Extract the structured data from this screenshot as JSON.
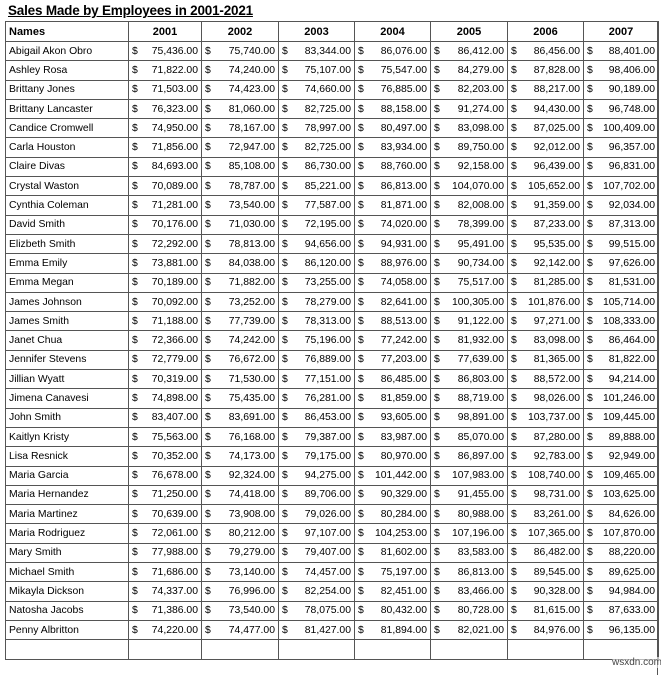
{
  "title": "Sales Made by Employees in 2001-2021",
  "currency_symbol": "$",
  "headers": [
    "Names",
    "2001",
    "2002",
    "2003",
    "2004",
    "2005",
    "2006",
    "2007"
  ],
  "rows": [
    [
      "Abigail Akon Obro",
      "75,436.00",
      "75,740.00",
      "83,344.00",
      "86,076.00",
      "86,412.00",
      "86,456.00",
      "88,401.00"
    ],
    [
      "Ashley Rosa",
      "71,822.00",
      "74,240.00",
      "75,107.00",
      "75,547.00",
      "84,279.00",
      "87,828.00",
      "98,406.00"
    ],
    [
      "Brittany Jones",
      "71,503.00",
      "74,423.00",
      "74,660.00",
      "76,885.00",
      "82,203.00",
      "88,217.00",
      "90,189.00"
    ],
    [
      "Brittany Lancaster",
      "76,323.00",
      "81,060.00",
      "82,725.00",
      "88,158.00",
      "91,274.00",
      "94,430.00",
      "96,748.00"
    ],
    [
      "Candice Cromwell",
      "74,950.00",
      "78,167.00",
      "78,997.00",
      "80,497.00",
      "83,098.00",
      "87,025.00",
      "100,409.00"
    ],
    [
      "Carla Houston",
      "71,856.00",
      "72,947.00",
      "82,725.00",
      "83,934.00",
      "89,750.00",
      "92,012.00",
      "96,357.00"
    ],
    [
      "Claire Divas",
      "84,693.00",
      "85,108.00",
      "86,730.00",
      "88,760.00",
      "92,158.00",
      "96,439.00",
      "96,831.00"
    ],
    [
      "Crystal Waston",
      "70,089.00",
      "78,787.00",
      "85,221.00",
      "86,813.00",
      "104,070.00",
      "105,652.00",
      "107,702.00"
    ],
    [
      "Cynthia Coleman",
      "71,281.00",
      "73,540.00",
      "77,587.00",
      "81,871.00",
      "82,008.00",
      "91,359.00",
      "92,034.00"
    ],
    [
      "David Smith",
      "70,176.00",
      "71,030.00",
      "72,195.00",
      "74,020.00",
      "78,399.00",
      "87,233.00",
      "87,313.00"
    ],
    [
      "Elizbeth Smith",
      "72,292.00",
      "78,813.00",
      "94,656.00",
      "94,931.00",
      "95,491.00",
      "95,535.00",
      "99,515.00"
    ],
    [
      "Emma Emily",
      "73,881.00",
      "84,038.00",
      "86,120.00",
      "88,976.00",
      "90,734.00",
      "92,142.00",
      "97,626.00"
    ],
    [
      "Emma Megan",
      "70,189.00",
      "71,882.00",
      "73,255.00",
      "74,058.00",
      "75,517.00",
      "81,285.00",
      "81,531.00"
    ],
    [
      "James Johnson",
      "70,092.00",
      "73,252.00",
      "78,279.00",
      "82,641.00",
      "100,305.00",
      "101,876.00",
      "105,714.00"
    ],
    [
      "James Smith",
      "71,188.00",
      "77,739.00",
      "78,313.00",
      "88,513.00",
      "91,122.00",
      "97,271.00",
      "108,333.00"
    ],
    [
      "Janet Chua",
      "72,366.00",
      "74,242.00",
      "75,196.00",
      "77,242.00",
      "81,932.00",
      "83,098.00",
      "86,464.00"
    ],
    [
      "Jennifer Stevens",
      "72,779.00",
      "76,672.00",
      "76,889.00",
      "77,203.00",
      "77,639.00",
      "81,365.00",
      "81,822.00"
    ],
    [
      "Jillian Wyatt",
      "70,319.00",
      "71,530.00",
      "77,151.00",
      "86,485.00",
      "86,803.00",
      "88,572.00",
      "94,214.00"
    ],
    [
      "Jimena Canavesi",
      "74,898.00",
      "75,435.00",
      "76,281.00",
      "81,859.00",
      "88,719.00",
      "98,026.00",
      "101,246.00"
    ],
    [
      "John Smith",
      "83,407.00",
      "83,691.00",
      "86,453.00",
      "93,605.00",
      "98,891.00",
      "103,737.00",
      "109,445.00"
    ],
    [
      "Kaitlyn Kristy",
      "75,563.00",
      "76,168.00",
      "79,387.00",
      "83,987.00",
      "85,070.00",
      "87,280.00",
      "89,888.00"
    ],
    [
      "Lisa Resnick",
      "70,352.00",
      "74,173.00",
      "79,175.00",
      "80,970.00",
      "86,897.00",
      "92,783.00",
      "92,949.00"
    ],
    [
      "Maria Garcia",
      "76,678.00",
      "92,324.00",
      "94,275.00",
      "101,442.00",
      "107,983.00",
      "108,740.00",
      "109,465.00"
    ],
    [
      "Maria Hernandez",
      "71,250.00",
      "74,418.00",
      "89,706.00",
      "90,329.00",
      "91,455.00",
      "98,731.00",
      "103,625.00"
    ],
    [
      "Maria Martinez",
      "70,639.00",
      "73,908.00",
      "79,026.00",
      "80,284.00",
      "80,988.00",
      "83,261.00",
      "84,626.00"
    ],
    [
      "Maria Rodriguez",
      "72,061.00",
      "80,212.00",
      "97,107.00",
      "104,253.00",
      "107,196.00",
      "107,365.00",
      "107,870.00"
    ],
    [
      "Mary Smith",
      "77,988.00",
      "79,279.00",
      "79,407.00",
      "81,602.00",
      "83,583.00",
      "86,482.00",
      "88,220.00"
    ],
    [
      "Michael Smith",
      "71,686.00",
      "73,140.00",
      "74,457.00",
      "75,197.00",
      "86,813.00",
      "89,545.00",
      "89,625.00"
    ],
    [
      "Mikayla Dickson",
      "74,337.00",
      "76,996.00",
      "82,254.00",
      "82,451.00",
      "83,466.00",
      "90,328.00",
      "94,984.00"
    ],
    [
      "Natosha Jacobs",
      "71,386.00",
      "73,540.00",
      "78,075.00",
      "80,432.00",
      "80,728.00",
      "81,615.00",
      "87,633.00"
    ],
    [
      "Penny Albritton",
      "74,220.00",
      "74,477.00",
      "81,427.00",
      "81,894.00",
      "82,021.00",
      "84,976.00",
      "96,135.00"
    ]
  ],
  "watermark": "wsxdn.com"
}
